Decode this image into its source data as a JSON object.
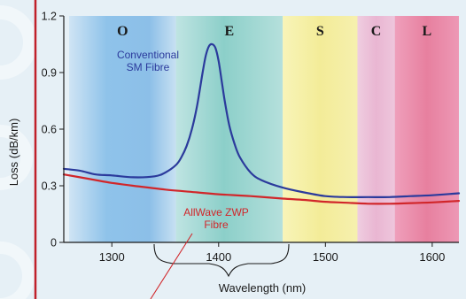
{
  "chart_data": {
    "type": "line",
    "xlabel": "Wavelength (nm)",
    "ylabel": "Loss (dB/km)",
    "xlim": [
      1255,
      1625
    ],
    "ylim": [
      0,
      1.2
    ],
    "x_ticks": [
      1300,
      1400,
      1500,
      1600
    ],
    "y_ticks": [
      0,
      0.3,
      0.6,
      0.9,
      1.2
    ],
    "grid": false,
    "bands": [
      {
        "label": "O",
        "start": 1260,
        "end": 1360,
        "color": "#8fc3ea"
      },
      {
        "label": "E",
        "start": 1360,
        "end": 1460,
        "color": "#9fd4d0"
      },
      {
        "label": "S",
        "start": 1460,
        "end": 1530,
        "color": "#f6f0a6"
      },
      {
        "label": "C",
        "start": 1530,
        "end": 1565,
        "color": "#ecbfd8"
      },
      {
        "label": "L",
        "start": 1565,
        "end": 1625,
        "color": "#e88fae"
      }
    ],
    "series": [
      {
        "name": "Conventional SM Fibre",
        "color": "#2b3a9c",
        "x": [
          1255,
          1270,
          1285,
          1300,
          1320,
          1340,
          1350,
          1360,
          1365,
          1370,
          1375,
          1380,
          1385,
          1388,
          1391,
          1394,
          1397,
          1400,
          1403,
          1406,
          1410,
          1415,
          1420,
          1430,
          1440,
          1460,
          1480,
          1500,
          1520,
          1540,
          1560,
          1580,
          1600,
          1625
        ],
        "y": [
          0.39,
          0.38,
          0.36,
          0.355,
          0.345,
          0.35,
          0.37,
          0.41,
          0.45,
          0.51,
          0.6,
          0.73,
          0.9,
          0.99,
          1.04,
          1.05,
          1.03,
          0.96,
          0.85,
          0.74,
          0.62,
          0.52,
          0.45,
          0.37,
          0.33,
          0.29,
          0.265,
          0.245,
          0.24,
          0.24,
          0.24,
          0.245,
          0.25,
          0.26
        ]
      },
      {
        "name": "AllWave ZWP Fibre",
        "color": "#d1262a",
        "x": [
          1255,
          1280,
          1300,
          1320,
          1350,
          1380,
          1400,
          1430,
          1460,
          1480,
          1500,
          1520,
          1540,
          1560,
          1580,
          1600,
          1625
        ],
        "y": [
          0.36,
          0.335,
          0.315,
          0.3,
          0.28,
          0.265,
          0.255,
          0.245,
          0.232,
          0.225,
          0.215,
          0.21,
          0.205,
          0.205,
          0.208,
          0.212,
          0.22
        ]
      }
    ],
    "annotations": {
      "conventional_line1": "Conventional",
      "conventional_line2": "SM Fibre",
      "allwave_line1": "AllWave ZWP",
      "allwave_line2": "Fibre"
    }
  }
}
